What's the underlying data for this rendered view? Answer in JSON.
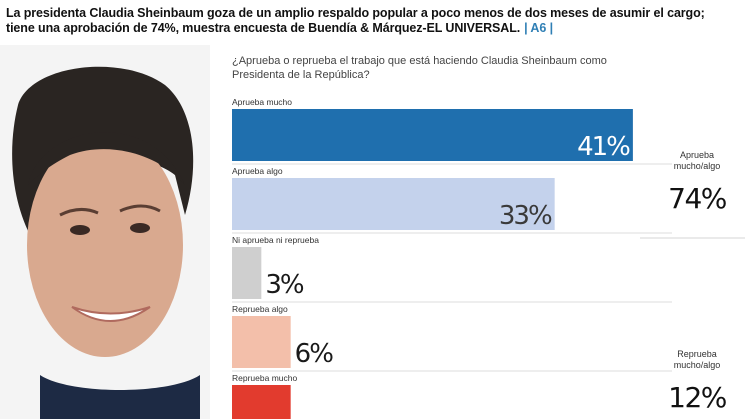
{
  "headline": {
    "text": "La presidenta Claudia Sheinbaum goza de un amplio respaldo popular a poco menos de dos meses de asumir el cargo; tiene una aprobación de 74%, muestra encuesta de Buendía & Márquez-EL UNIVERSAL.",
    "ref": "| A6 |"
  },
  "question": "¿Aprueba o reprueba el trabajo que está haciendo Claudia Sheinbaum como Presidenta de la República?",
  "photo": {
    "subject": "portrait"
  },
  "chart_data": {
    "type": "bar",
    "orientation": "horizontal",
    "categories": [
      "Aprueba mucho",
      "Aprueba algo",
      "Ni aprueba ni reprueba",
      "Reprueba algo",
      "Reprueba mucho"
    ],
    "values": [
      41,
      33,
      3,
      6,
      6
    ],
    "value_labels": [
      "41%",
      "33%",
      "3%",
      "6%",
      ""
    ],
    "colors": [
      "#1f6fae",
      "#c4d2ec",
      "#cfcfcf",
      "#f3bfaa",
      "#e23b2e"
    ],
    "value_colors": [
      "#ffffff",
      "#3a3a3a",
      "#1a1a1a",
      "#1a1a1a",
      "#ffffff"
    ],
    "xlim": [
      0,
      45
    ]
  },
  "summary": [
    {
      "label_line1": "Aprueba",
      "label_line2": "mucho/algo",
      "value": "74%"
    },
    {
      "label_line1": "Reprueba",
      "label_line2": "mucho/algo",
      "value": "12%"
    }
  ]
}
